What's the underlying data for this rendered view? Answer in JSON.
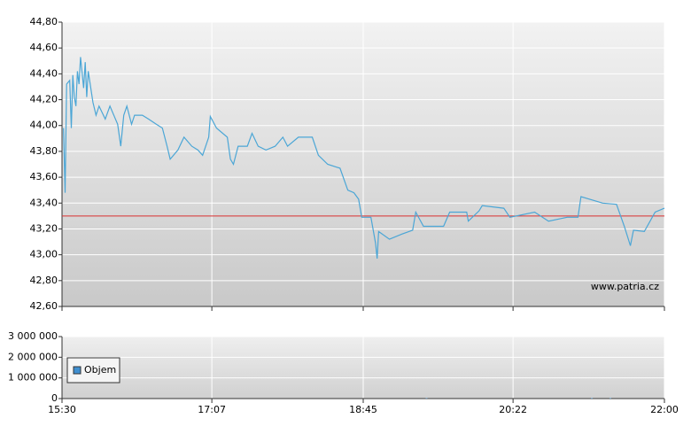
{
  "chart_data": [
    {
      "type": "line",
      "reference_line": 43.3,
      "reference_color": "#d93030",
      "watermark": "www.patria.cz",
      "xlim": [
        930,
        1320
      ],
      "xticks": [
        {
          "value": 930,
          "label": "15:30"
        },
        {
          "value": 1027,
          "label": "17:07"
        },
        {
          "value": 1125,
          "label": "18:45"
        },
        {
          "value": 1222,
          "label": "20:22"
        },
        {
          "value": 1320,
          "label": "22:00"
        }
      ],
      "ylim": [
        42.6,
        44.8
      ],
      "yticks": [
        {
          "value": 42.6,
          "label": "42,60"
        },
        {
          "value": 42.8,
          "label": "42,80"
        },
        {
          "value": 43.0,
          "label": "43,00"
        },
        {
          "value": 43.2,
          "label": "43,20"
        },
        {
          "value": 43.4,
          "label": "43,40"
        },
        {
          "value": 43.6,
          "label": "43,60"
        },
        {
          "value": 43.8,
          "label": "43,80"
        },
        {
          "value": 44.0,
          "label": "44,00"
        },
        {
          "value": 44.2,
          "label": "44,20"
        },
        {
          "value": 44.4,
          "label": "44,40"
        },
        {
          "value": 44.6,
          "label": "44,60"
        },
        {
          "value": 44.8,
          "label": "44,80"
        }
      ],
      "grid": true,
      "series": [
        {
          "color": "#4ba6d6",
          "x": [
            931,
            932,
            933,
            935,
            936,
            937,
            938,
            939,
            940,
            941,
            942,
            944,
            945,
            946,
            947,
            950,
            952,
            954,
            958,
            961,
            966,
            968,
            970,
            972,
            975,
            977,
            982,
            986,
            991,
            995,
            998,
            1000,
            1005,
            1009,
            1014,
            1018,
            1021,
            1025,
            1026,
            1030,
            1037,
            1039,
            1041,
            1044,
            1050,
            1053,
            1057,
            1062,
            1068,
            1073,
            1076,
            1083,
            1092,
            1096,
            1102,
            1110,
            1115,
            1119,
            1122,
            1124,
            1130,
            1133,
            1134,
            1135,
            1142,
            1150,
            1157,
            1159,
            1164,
            1177,
            1181,
            1192,
            1193,
            1200,
            1202,
            1216,
            1220,
            1236,
            1245,
            1257,
            1264,
            1266,
            1280,
            1289,
            1294,
            1298,
            1300,
            1307,
            1314,
            1320
          ],
          "values": [
            43.98,
            43.48,
            44.32,
            44.35,
            43.98,
            44.39,
            44.22,
            44.15,
            44.42,
            44.32,
            44.53,
            44.29,
            44.49,
            44.22,
            44.42,
            44.18,
            44.08,
            44.15,
            44.05,
            44.15,
            44.01,
            43.84,
            44.08,
            44.15,
            44.01,
            44.08,
            44.08,
            44.05,
            44.01,
            43.98,
            43.84,
            43.74,
            43.81,
            43.91,
            43.84,
            43.81,
            43.77,
            43.91,
            44.07,
            43.98,
            43.91,
            43.74,
            43.7,
            43.84,
            43.84,
            43.94,
            43.84,
            43.81,
            43.84,
            43.91,
            43.84,
            43.91,
            43.91,
            43.77,
            43.7,
            43.67,
            43.5,
            43.48,
            43.43,
            43.29,
            43.29,
            43.09,
            42.97,
            43.18,
            43.12,
            43.16,
            43.19,
            43.33,
            43.22,
            43.22,
            43.33,
            43.33,
            43.26,
            43.34,
            43.38,
            43.36,
            43.29,
            43.33,
            43.26,
            43.29,
            43.29,
            43.45,
            43.4,
            43.39,
            43.22,
            43.07,
            43.19,
            43.18,
            43.33,
            43.36
          ]
        }
      ]
    },
    {
      "type": "bar",
      "xlim": [
        930,
        1320
      ],
      "xticks": [
        {
          "value": 930,
          "label": "15:30"
        },
        {
          "value": 1027,
          "label": "17:07"
        },
        {
          "value": 1125,
          "label": "18:45"
        },
        {
          "value": 1222,
          "label": "20:22"
        },
        {
          "value": 1320,
          "label": "22:00"
        }
      ],
      "ylim": [
        0,
        3000000
      ],
      "yticks": [
        {
          "value": 0,
          "label": "0"
        },
        {
          "value": 1000000,
          "label": "1 000 000"
        },
        {
          "value": 2000000,
          "label": "2 000 000"
        },
        {
          "value": 3000000,
          "label": "3 000 000"
        }
      ],
      "grid": true,
      "legend": "top-left",
      "series": [
        {
          "name": "Objem",
          "color": "#3f8fd0",
          "x": [
            1166,
            1273,
            1285
          ],
          "values": [
            20000,
            20000,
            20000
          ]
        }
      ]
    }
  ]
}
